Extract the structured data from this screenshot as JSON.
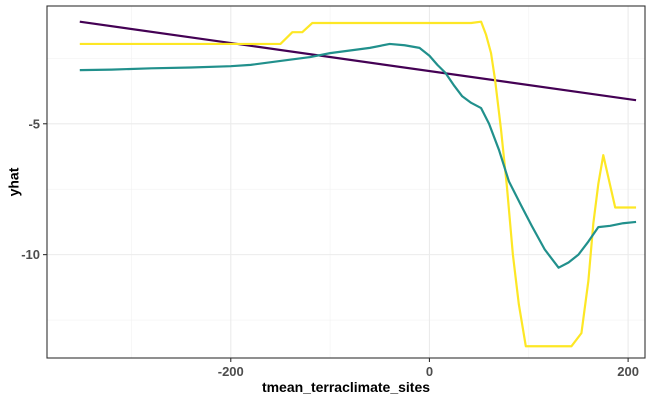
{
  "chart_data": {
    "type": "line",
    "title": "",
    "xlabel": "tmean_terraclimate_sites",
    "ylabel": "yhat",
    "xlim": [
      -385,
      217
    ],
    "ylim": [
      -13.95,
      -0.5
    ],
    "x_ticks": [
      {
        "value": -200,
        "label": "-200"
      },
      {
        "value": 0,
        "label": "0"
      },
      {
        "value": 200,
        "label": "200"
      }
    ],
    "y_ticks": [
      {
        "value": -5,
        "label": "-5"
      },
      {
        "value": -10,
        "label": "-10"
      }
    ],
    "grid": true,
    "legend": "none",
    "series": [
      {
        "color": "#440154",
        "points": [
          [
            -352,
            -1.1
          ],
          [
            208,
            -4.1
          ]
        ]
      },
      {
        "color": "#FDE725",
        "points": [
          [
            -352,
            -1.95
          ],
          [
            -150,
            -1.95
          ],
          [
            -138,
            -1.5
          ],
          [
            -128,
            -1.5
          ],
          [
            -118,
            -1.15
          ],
          [
            -80,
            -1.15
          ],
          [
            -30,
            -1.15
          ],
          [
            0,
            -1.15
          ],
          [
            25,
            -1.15
          ],
          [
            42,
            -1.15
          ],
          [
            52,
            -1.1
          ],
          [
            57,
            -1.6
          ],
          [
            62,
            -2.3
          ],
          [
            66,
            -3.3
          ],
          [
            72,
            -5.2
          ],
          [
            78,
            -7.4
          ],
          [
            84,
            -10.0
          ],
          [
            90,
            -11.9
          ],
          [
            97,
            -13.5
          ],
          [
            120,
            -13.5
          ],
          [
            143,
            -13.5
          ],
          [
            153,
            -13.0
          ],
          [
            160,
            -11.0
          ],
          [
            165,
            -8.8
          ],
          [
            170,
            -7.3
          ],
          [
            175,
            -6.2
          ],
          [
            187,
            -8.2
          ],
          [
            208,
            -8.2
          ]
        ]
      },
      {
        "color": "#21908C",
        "points": [
          [
            -352,
            -2.95
          ],
          [
            -320,
            -2.93
          ],
          [
            -280,
            -2.88
          ],
          [
            -240,
            -2.85
          ],
          [
            -200,
            -2.8
          ],
          [
            -180,
            -2.75
          ],
          [
            -150,
            -2.6
          ],
          [
            -120,
            -2.45
          ],
          [
            -100,
            -2.3
          ],
          [
            -80,
            -2.2
          ],
          [
            -60,
            -2.1
          ],
          [
            -40,
            -1.95
          ],
          [
            -25,
            -2.0
          ],
          [
            -10,
            -2.1
          ],
          [
            0,
            -2.4
          ],
          [
            8,
            -2.75
          ],
          [
            16,
            -3.05
          ],
          [
            25,
            -3.55
          ],
          [
            33,
            -3.95
          ],
          [
            42,
            -4.2
          ],
          [
            52,
            -4.4
          ],
          [
            60,
            -5.0
          ],
          [
            70,
            -6.0
          ],
          [
            80,
            -7.2
          ],
          [
            92,
            -8.1
          ],
          [
            103,
            -8.9
          ],
          [
            116,
            -9.8
          ],
          [
            130,
            -10.5
          ],
          [
            140,
            -10.3
          ],
          [
            150,
            -10.0
          ],
          [
            160,
            -9.5
          ],
          [
            170,
            -8.95
          ],
          [
            182,
            -8.9
          ],
          [
            195,
            -8.8
          ],
          [
            208,
            -8.75
          ]
        ]
      }
    ]
  }
}
